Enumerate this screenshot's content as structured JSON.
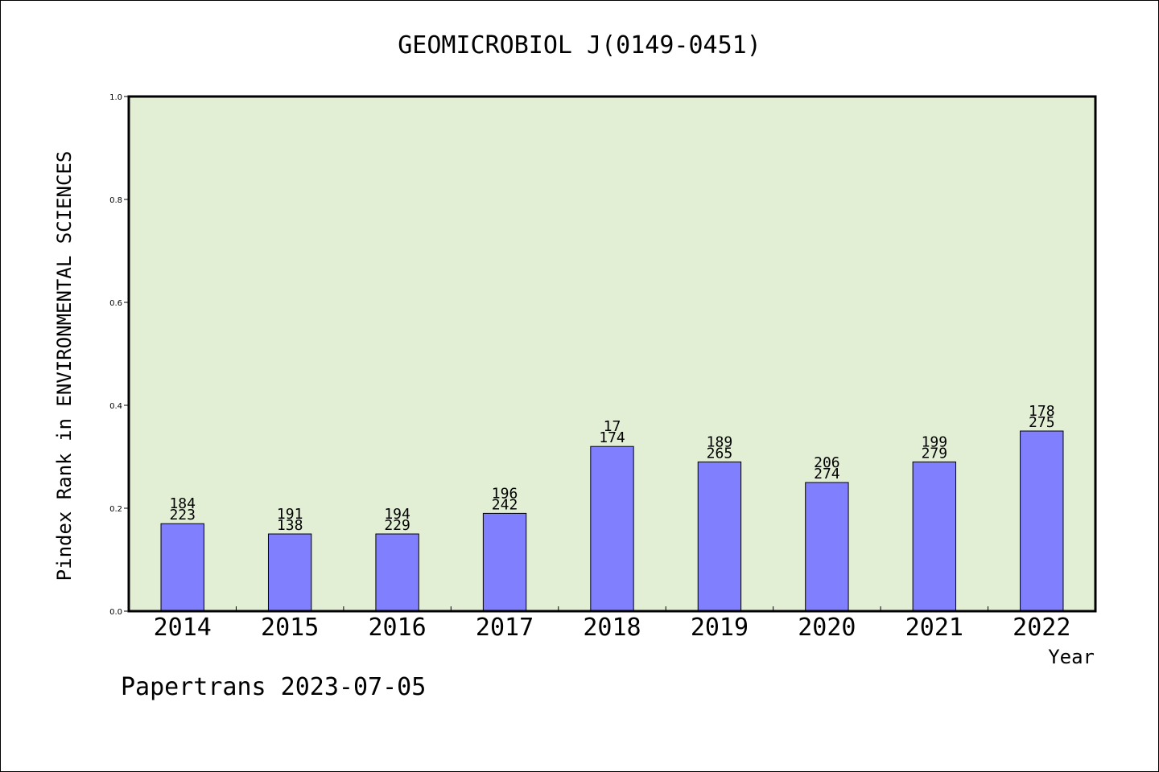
{
  "chart_data": {
    "type": "bar",
    "title": "GEOMICROBIOL J(0149-0451)",
    "xlabel": "Year",
    "ylabel": "Pindex Rank in ENVIRONMENTAL SCIENCES",
    "ylim": [
      0,
      1.0
    ],
    "yticks": [
      "0.0",
      "0.2",
      "0.4",
      "0.6",
      "0.8",
      "1.0"
    ],
    "categories": [
      "2014",
      "2015",
      "2016",
      "2017",
      "2018",
      "2019",
      "2020",
      "2021",
      "2022"
    ],
    "values": [
      0.17,
      0.15,
      0.15,
      0.19,
      0.32,
      0.29,
      0.25,
      0.29,
      0.35
    ],
    "labels_top": [
      "184",
      "191",
      "194",
      "196",
      "17",
      "189",
      "206",
      "199",
      "178"
    ],
    "labels_bottom": [
      "223",
      "138",
      "229",
      "242",
      "174",
      "265",
      "274",
      "279",
      "275"
    ],
    "grid": false,
    "colors": {
      "bar": "#8080ff",
      "plot_bg": "#e2efd5"
    }
  },
  "footer": {
    "text": "Papertrans 2023-07-05"
  }
}
